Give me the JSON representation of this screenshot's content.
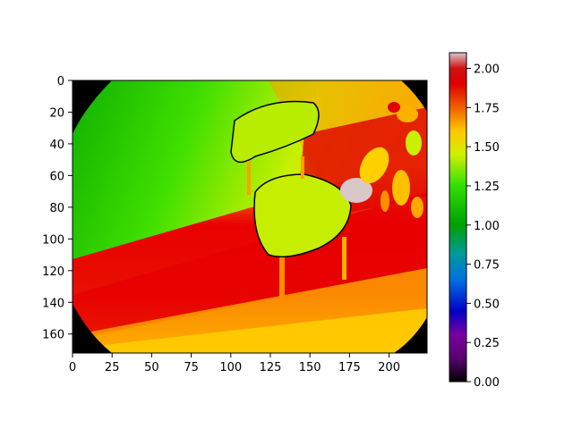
{
  "chart_data": {
    "type": "heatmap",
    "title": "",
    "description_kind": "depth map image with colorbar",
    "image_size": {
      "width": 224,
      "height": 172
    },
    "x_axis": {
      "ticks": [
        0,
        25,
        50,
        75,
        100,
        125,
        150,
        175,
        200
      ],
      "labels": [
        "0",
        "25",
        "50",
        "75",
        "100",
        "125",
        "150",
        "175",
        "200"
      ],
      "xlim": [
        0,
        224
      ]
    },
    "y_axis": {
      "ticks": [
        0,
        20,
        40,
        60,
        80,
        100,
        120,
        140,
        160
      ],
      "labels": [
        "0",
        "20",
        "40",
        "60",
        "80",
        "100",
        "120",
        "140",
        "160"
      ],
      "ylim": [
        0,
        172
      ],
      "inverted": true
    },
    "colorbar": {
      "vmin": 0.0,
      "vmax": 2.1,
      "ticks": [
        0.0,
        0.25,
        0.5,
        0.75,
        1.0,
        1.25,
        1.5,
        1.75,
        2.0
      ],
      "labels": [
        "0.00",
        "0.25",
        "0.50",
        "0.75",
        "1.00",
        "1.25",
        "1.50",
        "1.75",
        "2.00"
      ],
      "colormap_stops": [
        {
          "value": 0.0,
          "color": "#000000"
        },
        {
          "value": 0.15,
          "color": "#5a0070"
        },
        {
          "value": 0.3,
          "color": "#7a00a0"
        },
        {
          "value": 0.45,
          "color": "#0000c8"
        },
        {
          "value": 0.65,
          "color": "#0070e0"
        },
        {
          "value": 0.82,
          "color": "#009a9a"
        },
        {
          "value": 1.0,
          "color": "#00a000"
        },
        {
          "value": 1.25,
          "color": "#30e000"
        },
        {
          "value": 1.45,
          "color": "#d0f000"
        },
        {
          "value": 1.6,
          "color": "#ffc800"
        },
        {
          "value": 1.75,
          "color": "#f06000"
        },
        {
          "value": 1.9,
          "color": "#e00000"
        },
        {
          "value": 2.0,
          "color": "#d01010"
        },
        {
          "value": 2.1,
          "color": "#d8c8c8"
        }
      ]
    },
    "scene_regions": [
      {
        "name": "top-left-wall",
        "approx_depth": 1.1
      },
      {
        "name": "right-wall",
        "approx_depth": 1.7
      },
      {
        "name": "floor-red-band",
        "approx_depth": 1.95
      },
      {
        "name": "floor-bottom",
        "approx_depth": 1.6
      },
      {
        "name": "chair-backrest",
        "approx_depth": 1.4
      },
      {
        "name": "chair-seat",
        "approx_depth": 1.45
      },
      {
        "name": "chair-legs",
        "approx_depth": 1.7
      },
      {
        "name": "plant-leaves",
        "approx_depth": 1.55
      },
      {
        "name": "white-vase",
        "approx_depth": 2.1
      },
      {
        "name": "invalid-corners",
        "approx_depth": 0.0
      }
    ]
  }
}
